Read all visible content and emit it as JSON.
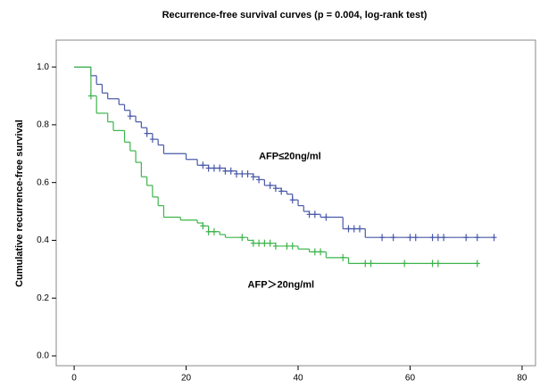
{
  "chart_data": {
    "type": "km",
    "title": "Recurrence-free survival curves (p = 0.004, log-rank test)",
    "y_label": "Cumulative recurrence-free survival",
    "xlim": [
      -3.2,
      82.4
    ],
    "ylim": [
      -0.034,
      1.093
    ],
    "xticks": [
      0,
      20,
      40,
      60,
      80
    ],
    "yticks": [
      {
        "value": 0,
        "label": "0.0"
      },
      {
        "value": 0.2,
        "label": "0.2"
      },
      {
        "value": 0.4,
        "label": "0.4"
      },
      {
        "value": 0.6,
        "label": "0.6"
      },
      {
        "value": 0.8,
        "label": "0.8"
      },
      {
        "value": 1,
        "label": "1.0"
      }
    ],
    "series": [
      {
        "name": "AFP≤20ng/ml",
        "color": "#4858a8",
        "x": [
          0,
          3,
          4,
          5,
          6,
          8,
          9,
          10,
          11,
          12,
          13,
          14,
          15,
          16,
          20,
          22,
          24,
          27,
          29,
          32,
          33,
          34,
          36,
          37,
          38,
          39,
          40,
          41,
          42,
          44,
          48,
          52
        ],
        "values": [
          1.0,
          0.97,
          0.94,
          0.91,
          0.89,
          0.87,
          0.85,
          0.83,
          0.81,
          0.79,
          0.77,
          0.75,
          0.73,
          0.7,
          0.68,
          0.66,
          0.65,
          0.64,
          0.63,
          0.62,
          0.61,
          0.59,
          0.58,
          0.57,
          0.56,
          0.54,
          0.52,
          0.5,
          0.49,
          0.48,
          0.44,
          0.41
        ],
        "censor_x": [
          10,
          13,
          14,
          23,
          24,
          25,
          26,
          27,
          28,
          29,
          30,
          31,
          32,
          33,
          35,
          36,
          37,
          39,
          42,
          43,
          45,
          49,
          50,
          51,
          55,
          57,
          60,
          61,
          64,
          65,
          66,
          70,
          72,
          75
        ],
        "censor_y": [
          0.83,
          0.77,
          0.75,
          0.66,
          0.65,
          0.65,
          0.65,
          0.64,
          0.64,
          0.63,
          0.63,
          0.63,
          0.62,
          0.61,
          0.59,
          0.58,
          0.57,
          0.54,
          0.49,
          0.49,
          0.48,
          0.44,
          0.44,
          0.44,
          0.41,
          0.41,
          0.41,
          0.41,
          0.41,
          0.41,
          0.41,
          0.41,
          0.41,
          0.41
        ]
      },
      {
        "name": "AFP＞20ng/ml",
        "color": "#3cb44b",
        "x": [
          0,
          3,
          4,
          6,
          7,
          9,
          10,
          11,
          12,
          13,
          14,
          15,
          16,
          19,
          22,
          23,
          24,
          26,
          27,
          31,
          32,
          36,
          40,
          42,
          45,
          49
        ],
        "values": [
          1.0,
          0.9,
          0.84,
          0.81,
          0.78,
          0.74,
          0.71,
          0.67,
          0.62,
          0.59,
          0.55,
          0.52,
          0.48,
          0.47,
          0.46,
          0.45,
          0.43,
          0.42,
          0.41,
          0.4,
          0.39,
          0.38,
          0.37,
          0.36,
          0.34,
          0.32
        ],
        "censor_x": [
          3,
          23,
          24,
          25,
          30,
          32,
          33,
          34,
          35,
          36,
          38,
          39,
          43,
          44,
          48,
          52,
          53,
          59,
          64,
          65,
          72
        ],
        "censor_y": [
          0.9,
          0.45,
          0.43,
          0.43,
          0.41,
          0.39,
          0.39,
          0.39,
          0.39,
          0.38,
          0.38,
          0.38,
          0.36,
          0.36,
          0.34,
          0.32,
          0.32,
          0.32,
          0.32,
          0.32,
          0.32
        ]
      }
    ]
  }
}
